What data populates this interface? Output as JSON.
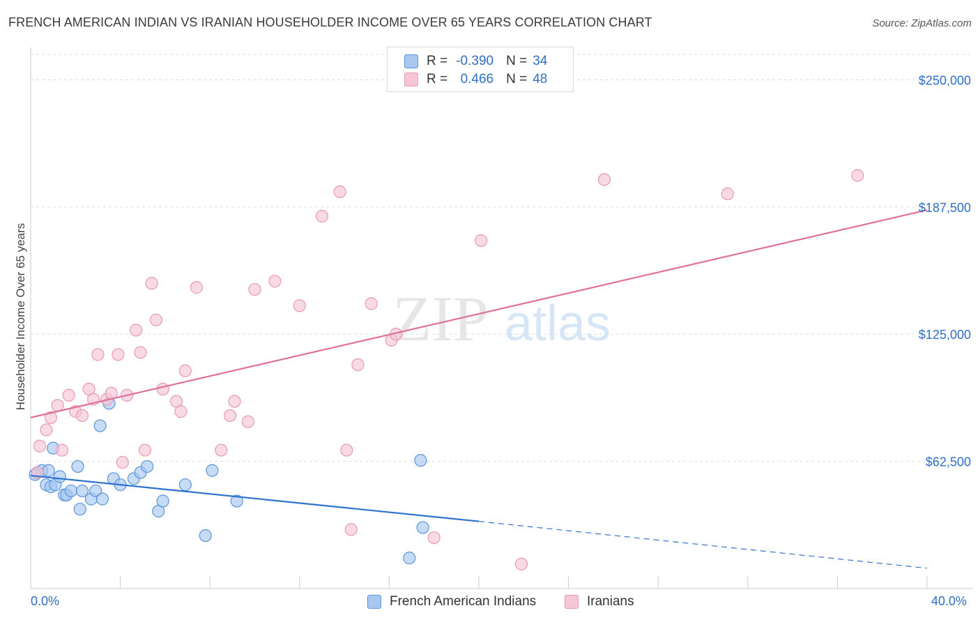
{
  "header": {
    "title": "FRENCH AMERICAN INDIAN VS IRANIAN HOUSEHOLDER INCOME OVER 65 YEARS CORRELATION CHART",
    "source": "Source: ZipAtlas.com"
  },
  "watermark": {
    "zip": "ZIP",
    "atlas": "atlas"
  },
  "legend_top": {
    "rows": [
      {
        "r_label": "R =",
        "r_value": "-0.390",
        "n_label": "N =",
        "n_value": "34"
      },
      {
        "r_label": "R =",
        "r_value": "0.466",
        "n_label": "N =",
        "n_value": "48"
      }
    ]
  },
  "colors": {
    "blue_fill": "#a8c8f0",
    "blue_stroke": "#5b95dc",
    "blue_line": "#2f73d0",
    "pink_fill": "#f6c6d5",
    "pink_stroke": "#e899b2",
    "pink_line": "#e07099",
    "accent_text": "#2f6fc7",
    "grid": "#dddddd"
  },
  "chart_data": {
    "type": "scatter",
    "title": "FRENCH AMERICAN INDIAN VS IRANIAN HOUSEHOLDER INCOME OVER 65 YEARS CORRELATION CHART",
    "xlabel": "",
    "ylabel": "Householder Income Over 65 years",
    "xlim": [
      0,
      40
    ],
    "ylim": [
      0,
      262500
    ],
    "x_tick_labels": [
      "0.0%",
      "40.0%"
    ],
    "y_ticks": [
      62500,
      125000,
      187500,
      250000
    ],
    "y_tick_labels": [
      "$62,500",
      "$125,000",
      "$187,500",
      "$250,000"
    ],
    "grid": true,
    "legend_position": "bottom",
    "series": [
      {
        "name": "French American Indians",
        "color": "blue",
        "points": [
          [
            0.3,
            57000
          ],
          [
            0.5,
            58000
          ],
          [
            0.7,
            51000
          ],
          [
            0.8,
            58000
          ],
          [
            0.9,
            50000
          ],
          [
            1.0,
            69000
          ],
          [
            1.1,
            51000
          ],
          [
            1.3,
            55000
          ],
          [
            1.5,
            46000
          ],
          [
            1.6,
            46000
          ],
          [
            1.8,
            48000
          ],
          [
            2.1,
            60000
          ],
          [
            2.2,
            39000
          ],
          [
            2.3,
            48000
          ],
          [
            2.7,
            44000
          ],
          [
            2.9,
            48000
          ],
          [
            3.1,
            80000
          ],
          [
            3.2,
            44000
          ],
          [
            3.5,
            91000
          ],
          [
            3.7,
            54000
          ],
          [
            4.0,
            51000
          ],
          [
            4.6,
            54000
          ],
          [
            4.9,
            57000
          ],
          [
            5.2,
            60000
          ],
          [
            5.7,
            38000
          ],
          [
            5.9,
            43000
          ],
          [
            6.9,
            51000
          ],
          [
            7.8,
            26000
          ],
          [
            8.1,
            58000
          ],
          [
            9.2,
            43000
          ],
          [
            16.9,
            15000
          ],
          [
            17.4,
            63000
          ],
          [
            17.5,
            30000
          ],
          [
            0.2,
            56000
          ]
        ]
      },
      {
        "name": "Iranians",
        "color": "pink",
        "points": [
          [
            0.3,
            57000
          ],
          [
            0.4,
            70000
          ],
          [
            0.7,
            78000
          ],
          [
            0.9,
            84000
          ],
          [
            1.2,
            90000
          ],
          [
            1.4,
            68000
          ],
          [
            1.7,
            95000
          ],
          [
            2.0,
            87000
          ],
          [
            2.3,
            85000
          ],
          [
            2.6,
            98000
          ],
          [
            2.8,
            93000
          ],
          [
            3.0,
            115000
          ],
          [
            3.4,
            93000
          ],
          [
            3.6,
            96000
          ],
          [
            3.9,
            115000
          ],
          [
            4.1,
            62000
          ],
          [
            4.3,
            95000
          ],
          [
            4.7,
            127000
          ],
          [
            4.9,
            116000
          ],
          [
            5.1,
            68000
          ],
          [
            5.4,
            150000
          ],
          [
            5.6,
            132000
          ],
          [
            5.9,
            98000
          ],
          [
            6.5,
            92000
          ],
          [
            6.7,
            87000
          ],
          [
            6.9,
            107000
          ],
          [
            7.4,
            148000
          ],
          [
            8.5,
            68000
          ],
          [
            8.9,
            85000
          ],
          [
            9.1,
            92000
          ],
          [
            9.7,
            82000
          ],
          [
            10.0,
            147000
          ],
          [
            10.9,
            151000
          ],
          [
            12.0,
            139000
          ],
          [
            13.0,
            183000
          ],
          [
            13.8,
            195000
          ],
          [
            14.1,
            68000
          ],
          [
            14.3,
            29000
          ],
          [
            14.6,
            110000
          ],
          [
            15.2,
            140000
          ],
          [
            16.1,
            122000
          ],
          [
            16.3,
            125000
          ],
          [
            18.0,
            25000
          ],
          [
            20.1,
            171000
          ],
          [
            21.9,
            12000
          ],
          [
            25.6,
            201000
          ],
          [
            31.1,
            194000
          ],
          [
            36.9,
            203000
          ]
        ]
      }
    ],
    "trend_lines": [
      {
        "series": "French American Indians",
        "x": [
          0,
          20
        ],
        "y": [
          55500,
          33000
        ],
        "dashed_extension_to_x": 40,
        "dashed_end_y": 10000
      },
      {
        "series": "Iranians",
        "x": [
          0,
          40
        ],
        "y": [
          84000,
          186000
        ]
      }
    ]
  },
  "legend_bottom": [
    {
      "label": "French American Indians",
      "color": "blue"
    },
    {
      "label": "Iranians",
      "color": "pink"
    }
  ]
}
